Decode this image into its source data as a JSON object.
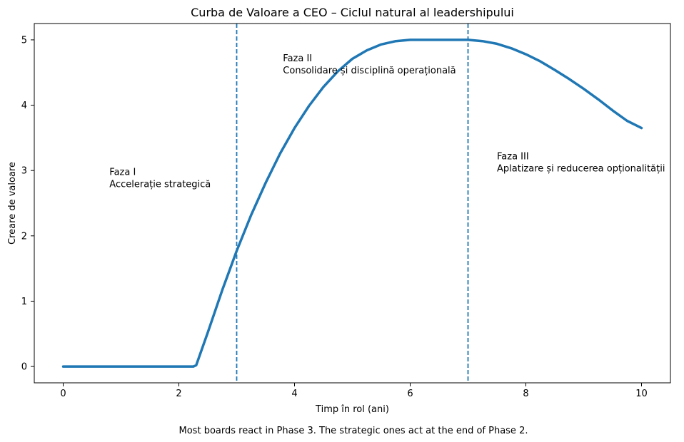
{
  "chart_data": {
    "type": "line",
    "title": "Curba de Valoare a CEO – Ciclul natural al leadershipului",
    "xlabel": "Timp în rol (ani)",
    "ylabel": "Creare de valoare",
    "xlim": [
      -0.5,
      10.5
    ],
    "ylim": [
      -0.25,
      5.25
    ],
    "xticks": [
      0,
      2,
      4,
      6,
      8,
      10
    ],
    "yticks": [
      0,
      1,
      2,
      3,
      4,
      5
    ],
    "grid": false,
    "series": [
      {
        "color": "#1f77b4",
        "x": [
          0,
          0.5,
          1,
          1.5,
          2,
          2.25,
          2.3,
          2.5,
          2.75,
          3,
          3.25,
          3.5,
          3.75,
          4,
          4.25,
          4.5,
          4.75,
          5,
          5.25,
          5.5,
          5.75,
          6,
          6.25,
          6.5,
          6.75,
          7,
          7.25,
          7.5,
          7.75,
          8,
          8.25,
          8.5,
          8.75,
          9,
          9.25,
          9.5,
          9.75,
          10
        ],
        "y": [
          0,
          0,
          0,
          0,
          0,
          0,
          0.02,
          0.52,
          1.17,
          1.77,
          2.32,
          2.81,
          3.26,
          3.65,
          3.99,
          4.28,
          4.52,
          4.71,
          4.84,
          4.93,
          4.98,
          5.0,
          5.0,
          5.0,
          5.0,
          5.0,
          4.98,
          4.94,
          4.87,
          4.78,
          4.67,
          4.54,
          4.4,
          4.25,
          4.09,
          3.92,
          3.76,
          3.65
        ]
      }
    ],
    "vlines": [
      {
        "x": 3,
        "color": "#1f77b4",
        "style": "dashed"
      },
      {
        "x": 7,
        "color": "#1f77b4",
        "style": "dashed"
      }
    ],
    "annotations": [
      {
        "x": 0.8,
        "y": 2.93,
        "lines": [
          "Faza I",
          "Accelerație strategică"
        ]
      },
      {
        "x": 3.8,
        "y": 4.67,
        "lines": [
          "Faza II",
          "Consolidare și disciplină operațională"
        ]
      },
      {
        "x": 7.5,
        "y": 3.17,
        "lines": [
          "Faza III",
          "Aplatizare și reducerea opționalității"
        ]
      }
    ]
  },
  "caption": "Most boards react in Phase 3. The strategic ones act at the end of Phase 2."
}
